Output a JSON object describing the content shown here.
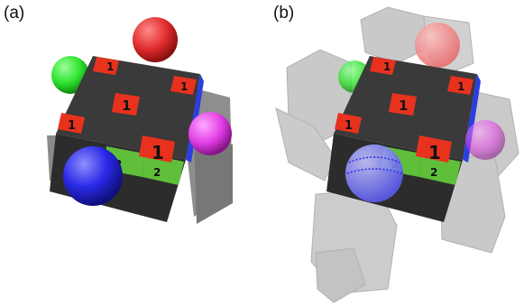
{
  "panels": [
    {
      "label": "(a)"
    },
    {
      "label": "(b)"
    }
  ],
  "cube": {
    "top_face_numbers": [
      "1",
      "1",
      "1",
      "1",
      "1"
    ],
    "side_face_numbers": [
      "2",
      "2"
    ],
    "colors": {
      "face_dark": "#3a3a3a",
      "face_darker": "#2a2a2a",
      "tile_red": "#e8321e",
      "tile_green": "#5fbf3a",
      "edge_blue": "#2b3ee0",
      "gray_block": "#8c8c8c"
    }
  },
  "spheres": {
    "red": "#e02b2b",
    "green": "#2ee22e",
    "magenta": "#e23ee6",
    "blue": "#2a2ae8"
  }
}
